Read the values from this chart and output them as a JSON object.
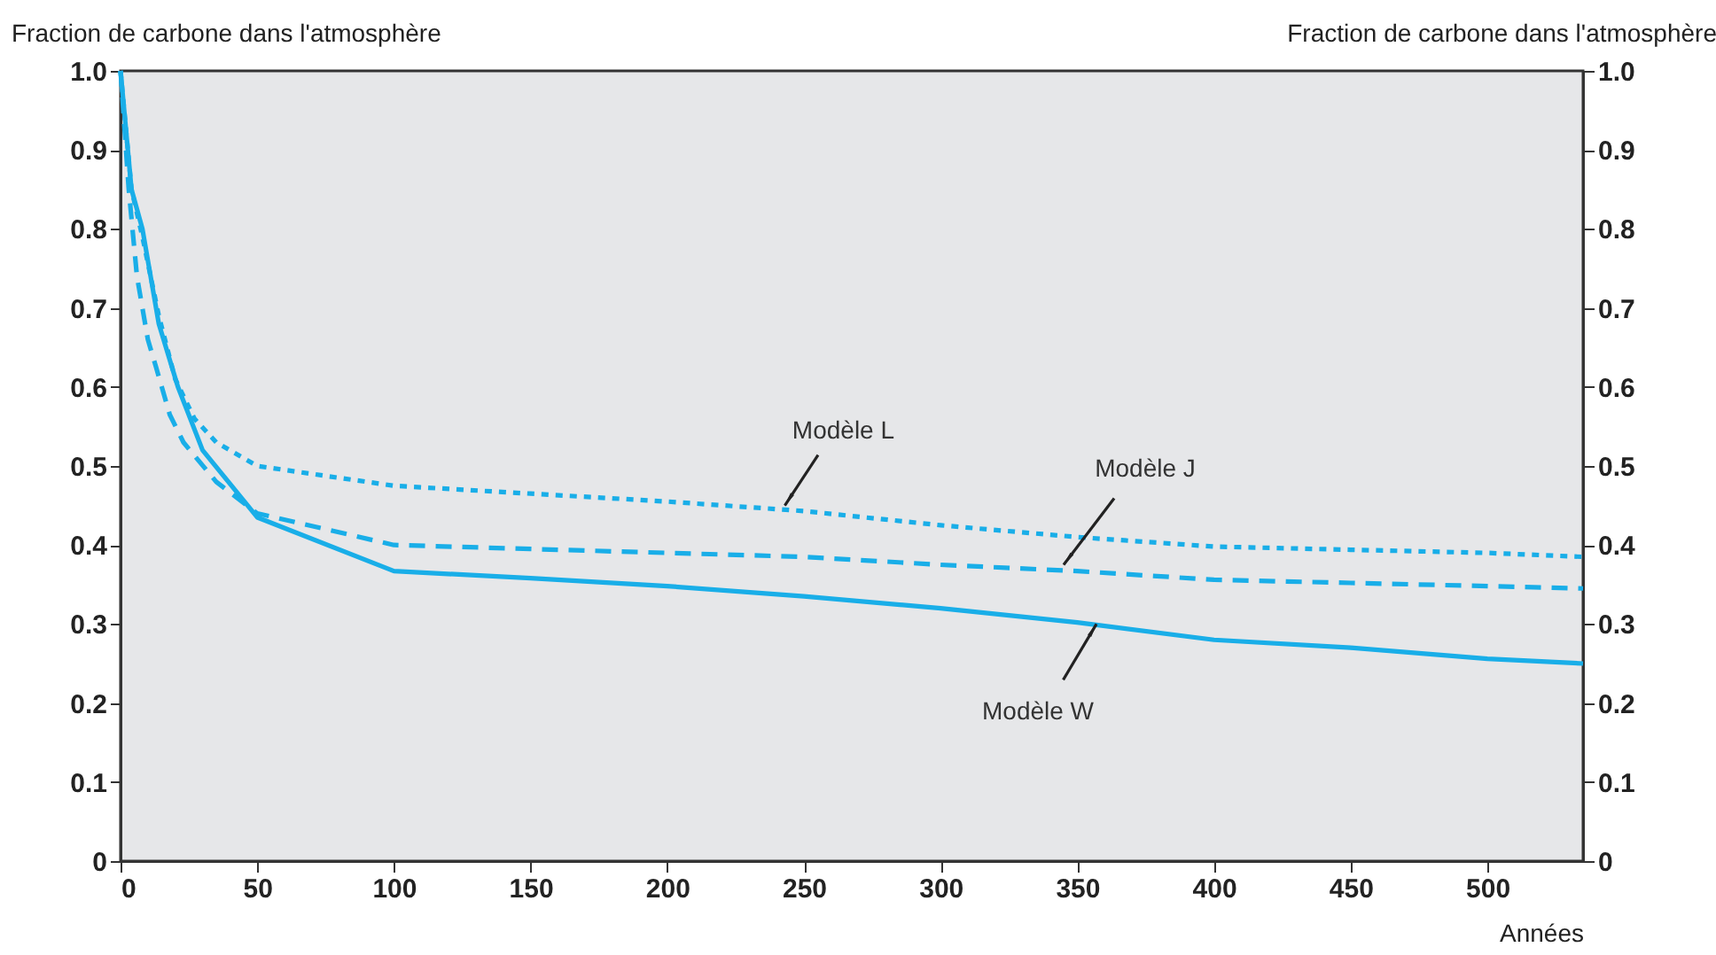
{
  "chart_data": {
    "type": "line",
    "xlabel": "Années",
    "ylabel": "Fraction de carbone dans l'atmosphère",
    "y2label": "Fraction de carbone dans l'atmosphère",
    "xlim": [
      0,
      535
    ],
    "xticks": [
      0,
      50,
      100,
      150,
      200,
      250,
      300,
      350,
      400,
      450,
      500
    ],
    "ylim": [
      0,
      1.0
    ],
    "yticks": [
      0,
      0.1,
      0.2,
      0.3,
      0.4,
      0.5,
      0.6,
      0.7,
      0.8,
      0.9,
      {
        "value": 1.0,
        "label": "1.0"
      }
    ],
    "y2lim": [
      0,
      1.0
    ],
    "y2ticks": [
      0,
      0.1,
      0.2,
      0.3,
      0.4,
      0.5,
      0.6,
      0.7,
      0.8,
      0.9,
      {
        "value": 1.0,
        "label": "1.0"
      }
    ],
    "grid": false,
    "marker": "none",
    "series": [
      {
        "color": "#19aee8",
        "line_style": "dotted",
        "x": [
          0,
          4,
          8,
          14,
          20,
          27,
          35,
          50,
          100,
          150,
          200,
          250,
          300,
          350,
          400,
          450,
          500,
          535
        ],
        "values": [
          1.0,
          0.85,
          0.79,
          0.69,
          0.61,
          0.56,
          0.53,
          0.5,
          0.475,
          0.465,
          0.455,
          0.443,
          0.425,
          0.41,
          0.398,
          0.394,
          0.39,
          0.385
        ]
      },
      {
        "color": "#19aee8",
        "line_style": "dashed",
        "x": [
          0,
          3,
          6,
          10,
          13,
          18,
          23,
          35,
          50,
          100,
          150,
          200,
          250,
          300,
          350,
          400,
          450,
          500,
          535
        ],
        "values": [
          1.0,
          0.85,
          0.74,
          0.66,
          0.625,
          0.565,
          0.53,
          0.48,
          0.44,
          0.4,
          0.395,
          0.39,
          0.385,
          0.375,
          0.367,
          0.356,
          0.352,
          0.348,
          0.345
        ]
      },
      {
        "color": "#19aee8",
        "line_style": "solid",
        "x": [
          0,
          4,
          8,
          14,
          21,
          30,
          50,
          100,
          150,
          200,
          250,
          300,
          350,
          400,
          450,
          500,
          535
        ],
        "values": [
          1.0,
          0.85,
          0.8,
          0.68,
          0.6,
          0.52,
          0.435,
          0.367,
          0.358,
          0.348,
          0.335,
          0.32,
          0.302,
          0.28,
          0.27,
          0.256,
          0.25
        ]
      }
    ],
    "annotations": [
      {
        "text": "Modèle L",
        "x": 243,
        "y": 0.45
      },
      {
        "text": "Modèle J",
        "x": 345,
        "y": 0.375
      },
      {
        "text": "Modèle W",
        "x": 357,
        "y": 0.3
      }
    ]
  }
}
